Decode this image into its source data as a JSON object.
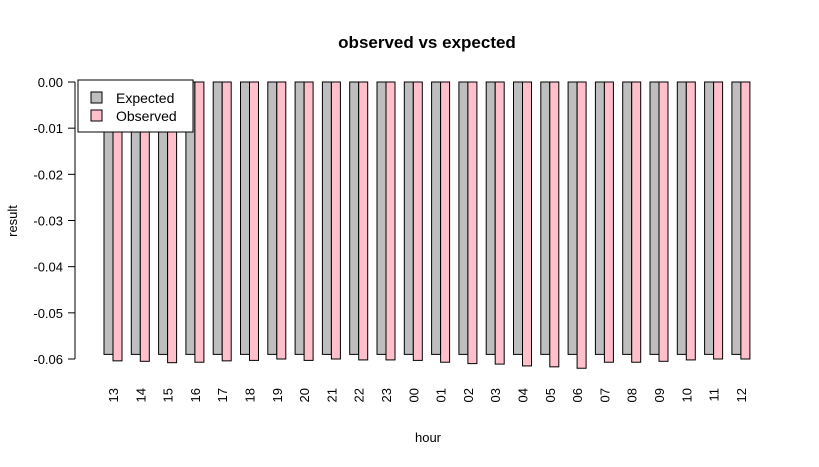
{
  "chart_data": {
    "type": "bar",
    "title": "observed vs expected",
    "xlabel": "hour",
    "ylabel": "result",
    "ylim": [
      -0.06,
      0.0
    ],
    "yticks": [
      "0.00",
      "-0.01",
      "-0.02",
      "-0.03",
      "-0.04",
      "-0.05",
      "-0.06"
    ],
    "ytick_values": [
      0.0,
      -0.01,
      -0.02,
      -0.03,
      -0.04,
      -0.05,
      -0.06
    ],
    "categories": [
      "13",
      "14",
      "15",
      "16",
      "17",
      "18",
      "19",
      "20",
      "21",
      "22",
      "23",
      "00",
      "01",
      "02",
      "03",
      "04",
      "05",
      "06",
      "07",
      "08",
      "09",
      "10",
      "11",
      "12"
    ],
    "series": [
      {
        "name": "Expected",
        "color": "#bebebe",
        "values": [
          -0.059,
          -0.059,
          -0.059,
          -0.059,
          -0.059,
          -0.059,
          -0.059,
          -0.059,
          -0.059,
          -0.059,
          -0.059,
          -0.059,
          -0.059,
          -0.059,
          -0.059,
          -0.059,
          -0.059,
          -0.059,
          -0.059,
          -0.059,
          -0.059,
          -0.059,
          -0.059,
          -0.059
        ]
      },
      {
        "name": "Observed",
        "color": "#ffc0cb",
        "values": [
          -0.0604,
          -0.0605,
          -0.0608,
          -0.0607,
          -0.0604,
          -0.0603,
          -0.06,
          -0.0603,
          -0.06,
          -0.0602,
          -0.0602,
          -0.0603,
          -0.0607,
          -0.061,
          -0.0611,
          -0.0615,
          -0.0617,
          -0.062,
          -0.0607,
          -0.0607,
          -0.0605,
          -0.0602,
          -0.06,
          -0.06
        ]
      }
    ],
    "legend_position": "top-left",
    "grid": false
  }
}
